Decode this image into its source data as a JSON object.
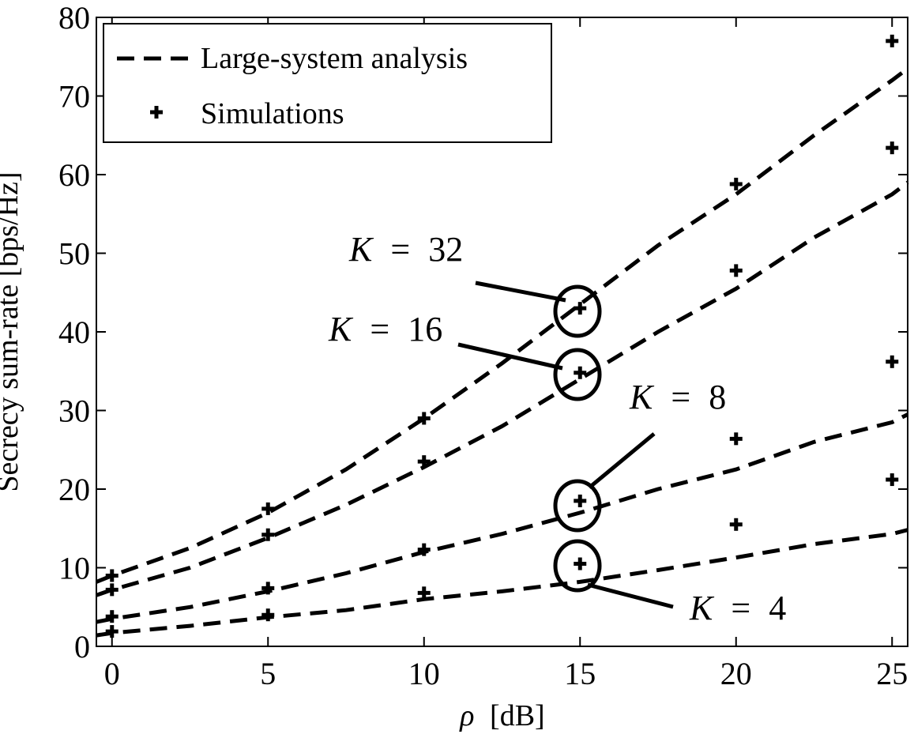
{
  "chart_data": {
    "type": "line",
    "xlabel_symbol": "ρ",
    "xlabel_unit": "[dB]",
    "ylabel": "Secrecy sum-rate [bps/Hz]",
    "xlim": [
      -0.5,
      25.5
    ],
    "ylim": [
      0,
      80
    ],
    "xticks": [
      0,
      5,
      10,
      15,
      20,
      25
    ],
    "yticks": [
      0,
      10,
      20,
      30,
      40,
      50,
      60,
      70,
      80
    ],
    "grid": false,
    "legend": {
      "placement": "top-left",
      "entries": [
        {
          "label": "Large-system analysis",
          "style": "dashed-line"
        },
        {
          "label": "Simulations",
          "style": "plus-marker"
        }
      ]
    },
    "analysis_x": [
      -0.5,
      0,
      2.5,
      5,
      7.5,
      10,
      12.5,
      15,
      17.5,
      20,
      22.5,
      25,
      25.5
    ],
    "series": [
      {
        "group": "K = 32",
        "analysis": [
          8.2,
          9.0,
          12.5,
          17.0,
          22.5,
          29.0,
          36.0,
          43.5,
          51.0,
          57.5,
          65.0,
          72.0,
          73.5
        ],
        "sim_x": [
          0,
          5,
          10,
          15,
          20,
          25
        ],
        "sim": [
          9.0,
          17.5,
          29.0,
          43.0,
          58.8,
          77.0
        ]
      },
      {
        "group": "K = 16",
        "analysis": [
          6.5,
          7.2,
          10.0,
          13.8,
          18.0,
          22.8,
          28.0,
          34.0,
          40.0,
          45.5,
          52.0,
          57.5,
          59.0
        ],
        "sim_x": [
          0,
          5,
          10,
          15,
          20,
          25
        ],
        "sim": [
          7.2,
          14.2,
          23.5,
          34.8,
          47.8,
          63.4
        ]
      },
      {
        "group": "K = 8",
        "analysis": [
          3.1,
          3.5,
          5.0,
          7.0,
          9.3,
          12.0,
          14.3,
          17.0,
          20.0,
          22.5,
          26.0,
          28.5,
          29.5
        ],
        "sim_x": [
          0,
          5,
          10,
          15,
          20,
          25
        ],
        "sim": [
          3.8,
          7.4,
          12.3,
          18.5,
          26.4,
          36.2
        ]
      },
      {
        "group": "K = 4",
        "analysis": [
          1.4,
          1.7,
          2.6,
          3.7,
          4.6,
          6.0,
          7.0,
          8.2,
          9.7,
          11.3,
          13.0,
          14.3,
          14.8
        ],
        "sim_x": [
          0,
          5,
          10,
          15,
          20,
          25
        ],
        "sim": [
          1.9,
          4.0,
          6.8,
          10.5,
          15.5,
          21.2
        ]
      }
    ],
    "annotations": [
      {
        "label_var": "K",
        "label_eq": "=",
        "label_val": "32"
      },
      {
        "label_var": "K",
        "label_eq": "=",
        "label_val": "16"
      },
      {
        "label_var": "K",
        "label_eq": "=",
        "label_val": "8"
      },
      {
        "label_var": "K",
        "label_eq": "=",
        "label_val": "4"
      }
    ]
  }
}
